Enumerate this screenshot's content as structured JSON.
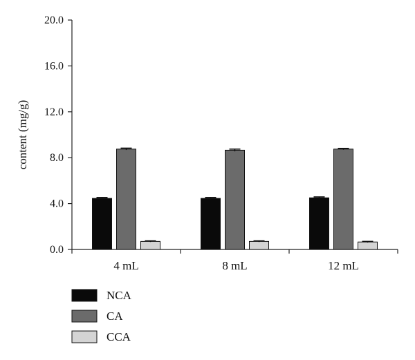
{
  "chart_data": {
    "type": "bar",
    "ylabel": "content (mg/g)",
    "xlabel": "",
    "ylim": [
      0,
      20
    ],
    "yticks": [
      "0.0",
      "4.0",
      "8.0",
      "12.0",
      "16.0",
      "20.0"
    ],
    "categories": [
      "4 mL",
      "8 mL",
      "12 mL"
    ],
    "series": [
      {
        "name": "NCA",
        "color": "#0a0a0a",
        "values": [
          4.45,
          4.45,
          4.5
        ],
        "errors": [
          0.08,
          0.08,
          0.08
        ]
      },
      {
        "name": "CA",
        "color": "#6b6b6b",
        "values": [
          8.75,
          8.65,
          8.75
        ],
        "errors": [
          0.08,
          0.1,
          0.06
        ]
      },
      {
        "name": "CCA",
        "color": "#d4d4d4",
        "values": [
          0.7,
          0.7,
          0.65
        ],
        "errors": [
          0.05,
          0.05,
          0.05
        ]
      }
    ],
    "grid": false,
    "legend_position": "bottom-left"
  }
}
